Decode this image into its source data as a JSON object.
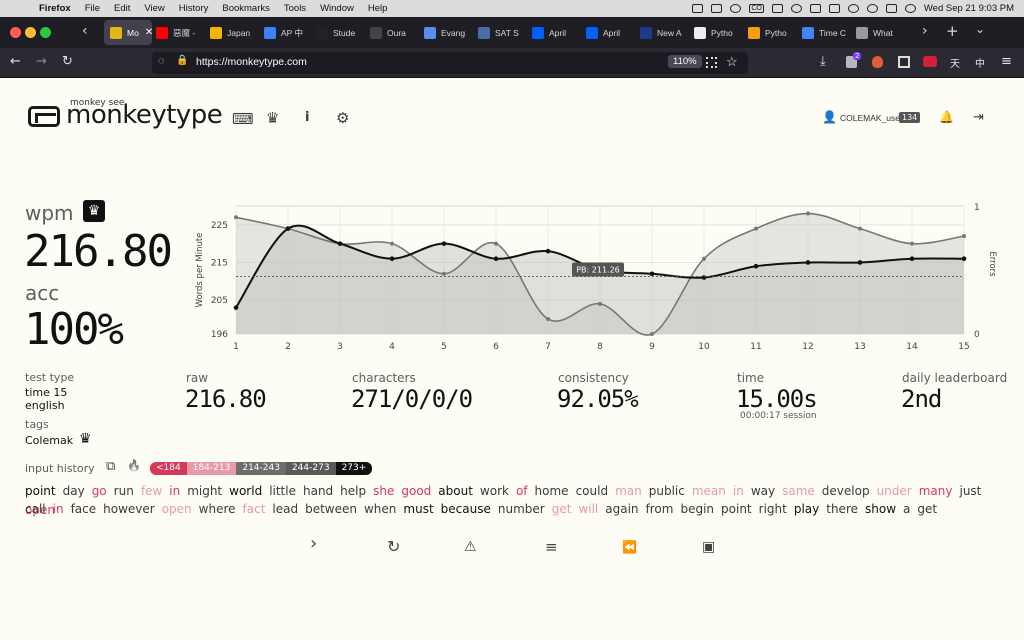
{
  "menubar": {
    "apple_glyph": "",
    "app": "Firefox",
    "items": [
      "File",
      "Edit",
      "View",
      "History",
      "Bookmarks",
      "Tools",
      "Window",
      "Help"
    ],
    "clock": "Wed Sep 21  9:03 PM",
    "tray_badge": "CO"
  },
  "tabs": [
    {
      "label": "Mo",
      "color": "#e2b714",
      "active": true
    },
    {
      "label": "惡魔 -",
      "color": "#ff0000",
      "active": false
    },
    {
      "label": "Japan",
      "color": "#f5b400",
      "active": false
    },
    {
      "label": "AP 中",
      "color": "#3b82f6",
      "active": false
    },
    {
      "label": "Stude",
      "color": "#222222",
      "active": false
    },
    {
      "label": "Oura",
      "color": "#444444",
      "active": false
    },
    {
      "label": "Evang",
      "color": "#5b8def",
      "active": false
    },
    {
      "label": "SAT S",
      "color": "#4a6da7",
      "active": false
    },
    {
      "label": "April",
      "color": "#0061fe",
      "active": false
    },
    {
      "label": "April",
      "color": "#0061fe",
      "active": false
    },
    {
      "label": "New A",
      "color": "#1e3a8a",
      "active": false
    },
    {
      "label": "Pytho",
      "color": "#eeeeee",
      "active": false
    },
    {
      "label": "Pytho",
      "color": "#f59e0b",
      "active": false
    },
    {
      "label": "Time C",
      "color": "#4285f4",
      "active": false
    },
    {
      "label": "What",
      "color": "#999999",
      "active": false
    }
  ],
  "tab_close_glyph": "✕",
  "browser": {
    "url": "https://monkeytype.com",
    "zoom": "110%",
    "back_glyph": "←",
    "forward_glyph": "→",
    "reload_glyph": "↻",
    "shield_glyph": "◌",
    "lock_glyph": "🔒",
    "star_glyph": "☆",
    "download_glyph": "⤓",
    "menu_glyph": "≡",
    "ext_badge": "2",
    "ext_labels": [
      "天",
      "中"
    ]
  },
  "site": {
    "logo_small": "monkey see",
    "logo": "monkeytype",
    "user": "COLEMAK_user",
    "level": "134",
    "keyboard_glyph": "⌨",
    "crown_glyph": "♛",
    "info_glyph": "i",
    "gear_glyph": "⚙",
    "user_glyph": "👤",
    "bell_glyph": "🔔",
    "logout_glyph": "⇥"
  },
  "result": {
    "wpm_label": "wpm",
    "wpm": "216.80",
    "acc_label": "acc",
    "acc": "100%",
    "crown_glyph": "♛"
  },
  "chart_data": {
    "type": "line",
    "x": [
      1,
      2,
      3,
      4,
      5,
      6,
      7,
      8,
      9,
      10,
      11,
      12,
      13,
      14,
      15
    ],
    "series": [
      {
        "name": "wpm",
        "values": [
          203,
          224,
          220,
          216,
          220,
          216,
          218,
          213,
          212,
          211,
          214,
          215,
          215,
          216,
          216
        ]
      },
      {
        "name": "raw",
        "values": [
          227,
          224,
          220,
          220,
          212,
          220,
          200,
          204,
          196,
          216,
          224,
          228,
          224,
          220,
          222
        ]
      }
    ],
    "errors": [],
    "ylabel": "Words per Minute",
    "y2label": "Errors",
    "y_ticks": [
      "196",
      "205",
      "215",
      "225"
    ],
    "y2_ticks": [
      "1",
      "0"
    ],
    "x_ticks": [
      "1",
      "2",
      "3",
      "4",
      "5",
      "6",
      "7",
      "8",
      "9",
      "10",
      "11",
      "12",
      "13",
      "14",
      "15"
    ],
    "ylim": [
      196,
      230
    ],
    "pb_label": "PB: 211.26",
    "pb_value": 211.26
  },
  "stats": {
    "test_type_label": "test type",
    "test_type": "time 15",
    "language": "english",
    "tags_label": "tags",
    "tag": "Colemak",
    "raw_label": "raw",
    "raw": "216.80",
    "characters_label": "characters",
    "characters": "271/0/0/0",
    "consistency_label": "consistency",
    "consistency": "92.05%",
    "time_label": "time",
    "time": "15.00s",
    "session": "00:00:17 session",
    "leaderboard_label": "daily leaderboard",
    "leaderboard": "2nd"
  },
  "input_history": {
    "label": "input history",
    "copy_glyph": "⧉",
    "fire_glyph": "🔥",
    "legend": [
      {
        "text": "<184",
        "color": "#d53a5a"
      },
      {
        "text": "184-213",
        "color": "#e79aa7"
      },
      {
        "text": "214-243",
        "color": "#6e6e6e"
      },
      {
        "text": "244-273",
        "color": "#5a5a5a"
      },
      {
        "text": "273+",
        "color": "#111111"
      }
    ],
    "lines": [
      [
        [
          "point",
          "hi"
        ],
        [
          "day",
          ""
        ],
        [
          "go",
          "r1"
        ],
        [
          "run",
          ""
        ],
        [
          "few",
          "r2"
        ],
        [
          "in",
          "r1"
        ],
        [
          "might",
          ""
        ],
        [
          "world",
          "hi"
        ],
        [
          "little",
          ""
        ],
        [
          "hand",
          ""
        ],
        [
          "help",
          ""
        ],
        [
          "she",
          "r1"
        ],
        [
          "good",
          "r1"
        ],
        [
          "about",
          "hi"
        ],
        [
          "work",
          ""
        ],
        [
          "of",
          "r1"
        ],
        [
          "home",
          ""
        ],
        [
          "could",
          ""
        ],
        [
          "man",
          "r2"
        ],
        [
          "public",
          ""
        ],
        [
          "mean",
          "r2"
        ],
        [
          "in",
          "r2"
        ],
        [
          "way",
          ""
        ],
        [
          "same",
          "r2"
        ],
        [
          "develop",
          ""
        ],
        [
          "under",
          "r2"
        ],
        [
          "many",
          "r1"
        ],
        [
          "just",
          ""
        ],
        [
          "open",
          "r1"
        ]
      ],
      [
        [
          "call",
          ""
        ],
        [
          "in",
          "r1"
        ],
        [
          "face",
          ""
        ],
        [
          "however",
          ""
        ],
        [
          "open",
          "r2"
        ],
        [
          "where",
          ""
        ],
        [
          "fact",
          "r2"
        ],
        [
          "lead",
          ""
        ],
        [
          "between",
          ""
        ],
        [
          "when",
          ""
        ],
        [
          "must",
          "hi"
        ],
        [
          "because",
          "hi"
        ],
        [
          "number",
          ""
        ],
        [
          "get",
          "r2"
        ],
        [
          "will",
          "r2"
        ],
        [
          "again",
          ""
        ],
        [
          "from",
          ""
        ],
        [
          "begin",
          ""
        ],
        [
          "point",
          ""
        ],
        [
          "right",
          ""
        ],
        [
          "play",
          "hi"
        ],
        [
          "there",
          ""
        ],
        [
          "show",
          "hi"
        ],
        [
          "a",
          ""
        ],
        [
          "get",
          ""
        ]
      ]
    ]
  },
  "controls": {
    "next_glyph": "›",
    "restart_glyph": "↻",
    "report_glyph": "⚠",
    "words_glyph": "≡",
    "replay_glyph": "⏪",
    "screenshot_glyph": "▣"
  }
}
